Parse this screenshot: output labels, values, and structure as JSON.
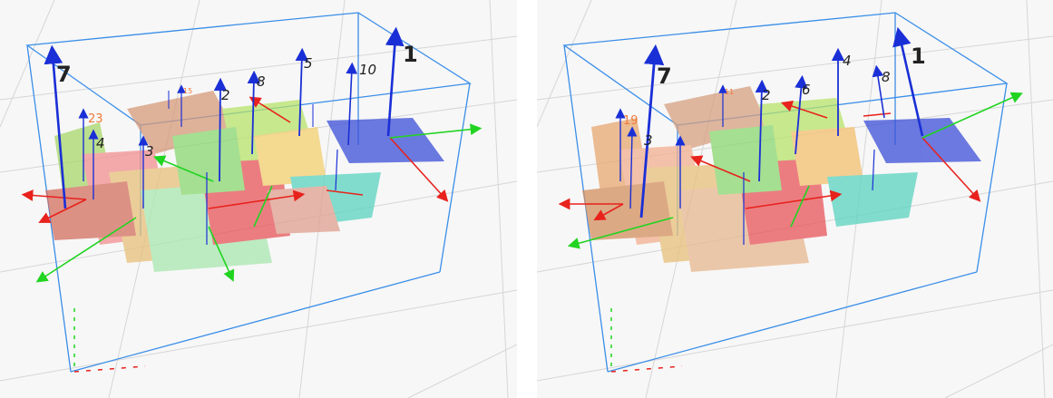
{
  "left_view": {
    "labels": [
      {
        "text": "7",
        "size": "big"
      },
      {
        "text": "1",
        "size": "big"
      },
      {
        "text": "5",
        "size": "mid"
      },
      {
        "text": "8",
        "size": "mid"
      },
      {
        "text": "10",
        "size": "mid"
      },
      {
        "text": "2",
        "size": "mid"
      },
      {
        "text": "23",
        "size": "sm"
      },
      {
        "text": "4",
        "size": "mid"
      },
      {
        "text": "3",
        "size": "mid"
      },
      {
        "text": "15",
        "size": "tiny"
      }
    ]
  },
  "right_view": {
    "labels": [
      {
        "text": "7",
        "size": "big"
      },
      {
        "text": "1",
        "size": "big"
      },
      {
        "text": "4",
        "size": "mid"
      },
      {
        "text": "8",
        "size": "mid"
      },
      {
        "text": "6",
        "size": "mid"
      },
      {
        "text": "2",
        "size": "mid"
      },
      {
        "text": "19",
        "size": "sm"
      },
      {
        "text": "3",
        "size": "mid"
      },
      {
        "text": "11",
        "size": "tiny"
      }
    ]
  },
  "colors": {
    "box": "#3a8ee8",
    "normal_axis": "#1a2fd6",
    "x_axis": "#e8221c",
    "y_axis": "#21d421",
    "grid": "#d6d6d6"
  }
}
